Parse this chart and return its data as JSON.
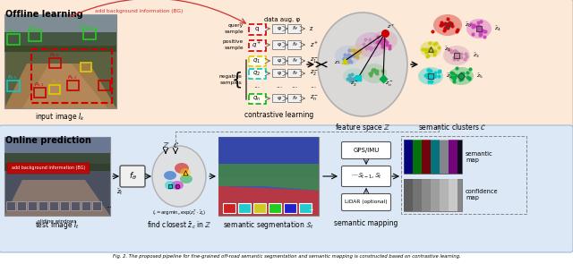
{
  "top_bg": "#fce9d8",
  "bottom_bg": "#dce8f5",
  "offline_label": "Offline learning",
  "online_label": "Online prediction",
  "caption": "Fig. 2. The proposed pipeline for fine-grained off-road semantic segmentation and semantic mapping is constructed based on contrastive learning.",
  "top_section_labels": [
    "input image $I_k$",
    "contrastive learning",
    "feature space $\\mathbb{Z}$",
    "semantic clusters $\\mathcal{C}$"
  ],
  "bottom_section_labels": [
    "test image $I_t$",
    "find closest $\\bar{z}_c$ in $\\mathbb{Z}$",
    "semantic segmentation $\\mathcal{S}_t$",
    "semantic mapping"
  ],
  "query_box_color": "#cc0000",
  "positive_box_color": "#cc0000",
  "neg_colors": [
    "#ddcc00",
    "#00cccc",
    "#00bb00"
  ],
  "cluster_colors_top": [
    "#aa88cc",
    "#cc88aa",
    "#88aacc",
    "#88cc88",
    "#ccaa44"
  ],
  "semantic_cluster_colors": [
    "#cc0000",
    "#cc44aa",
    "#cccc00",
    "#00cccc",
    "#00aa44",
    "#0055cc"
  ],
  "online_blob_colors": [
    "#cc0000",
    "#0055cc",
    "#00aa00",
    "#cc00cc",
    "#ffcc00",
    "#00cccc"
  ]
}
